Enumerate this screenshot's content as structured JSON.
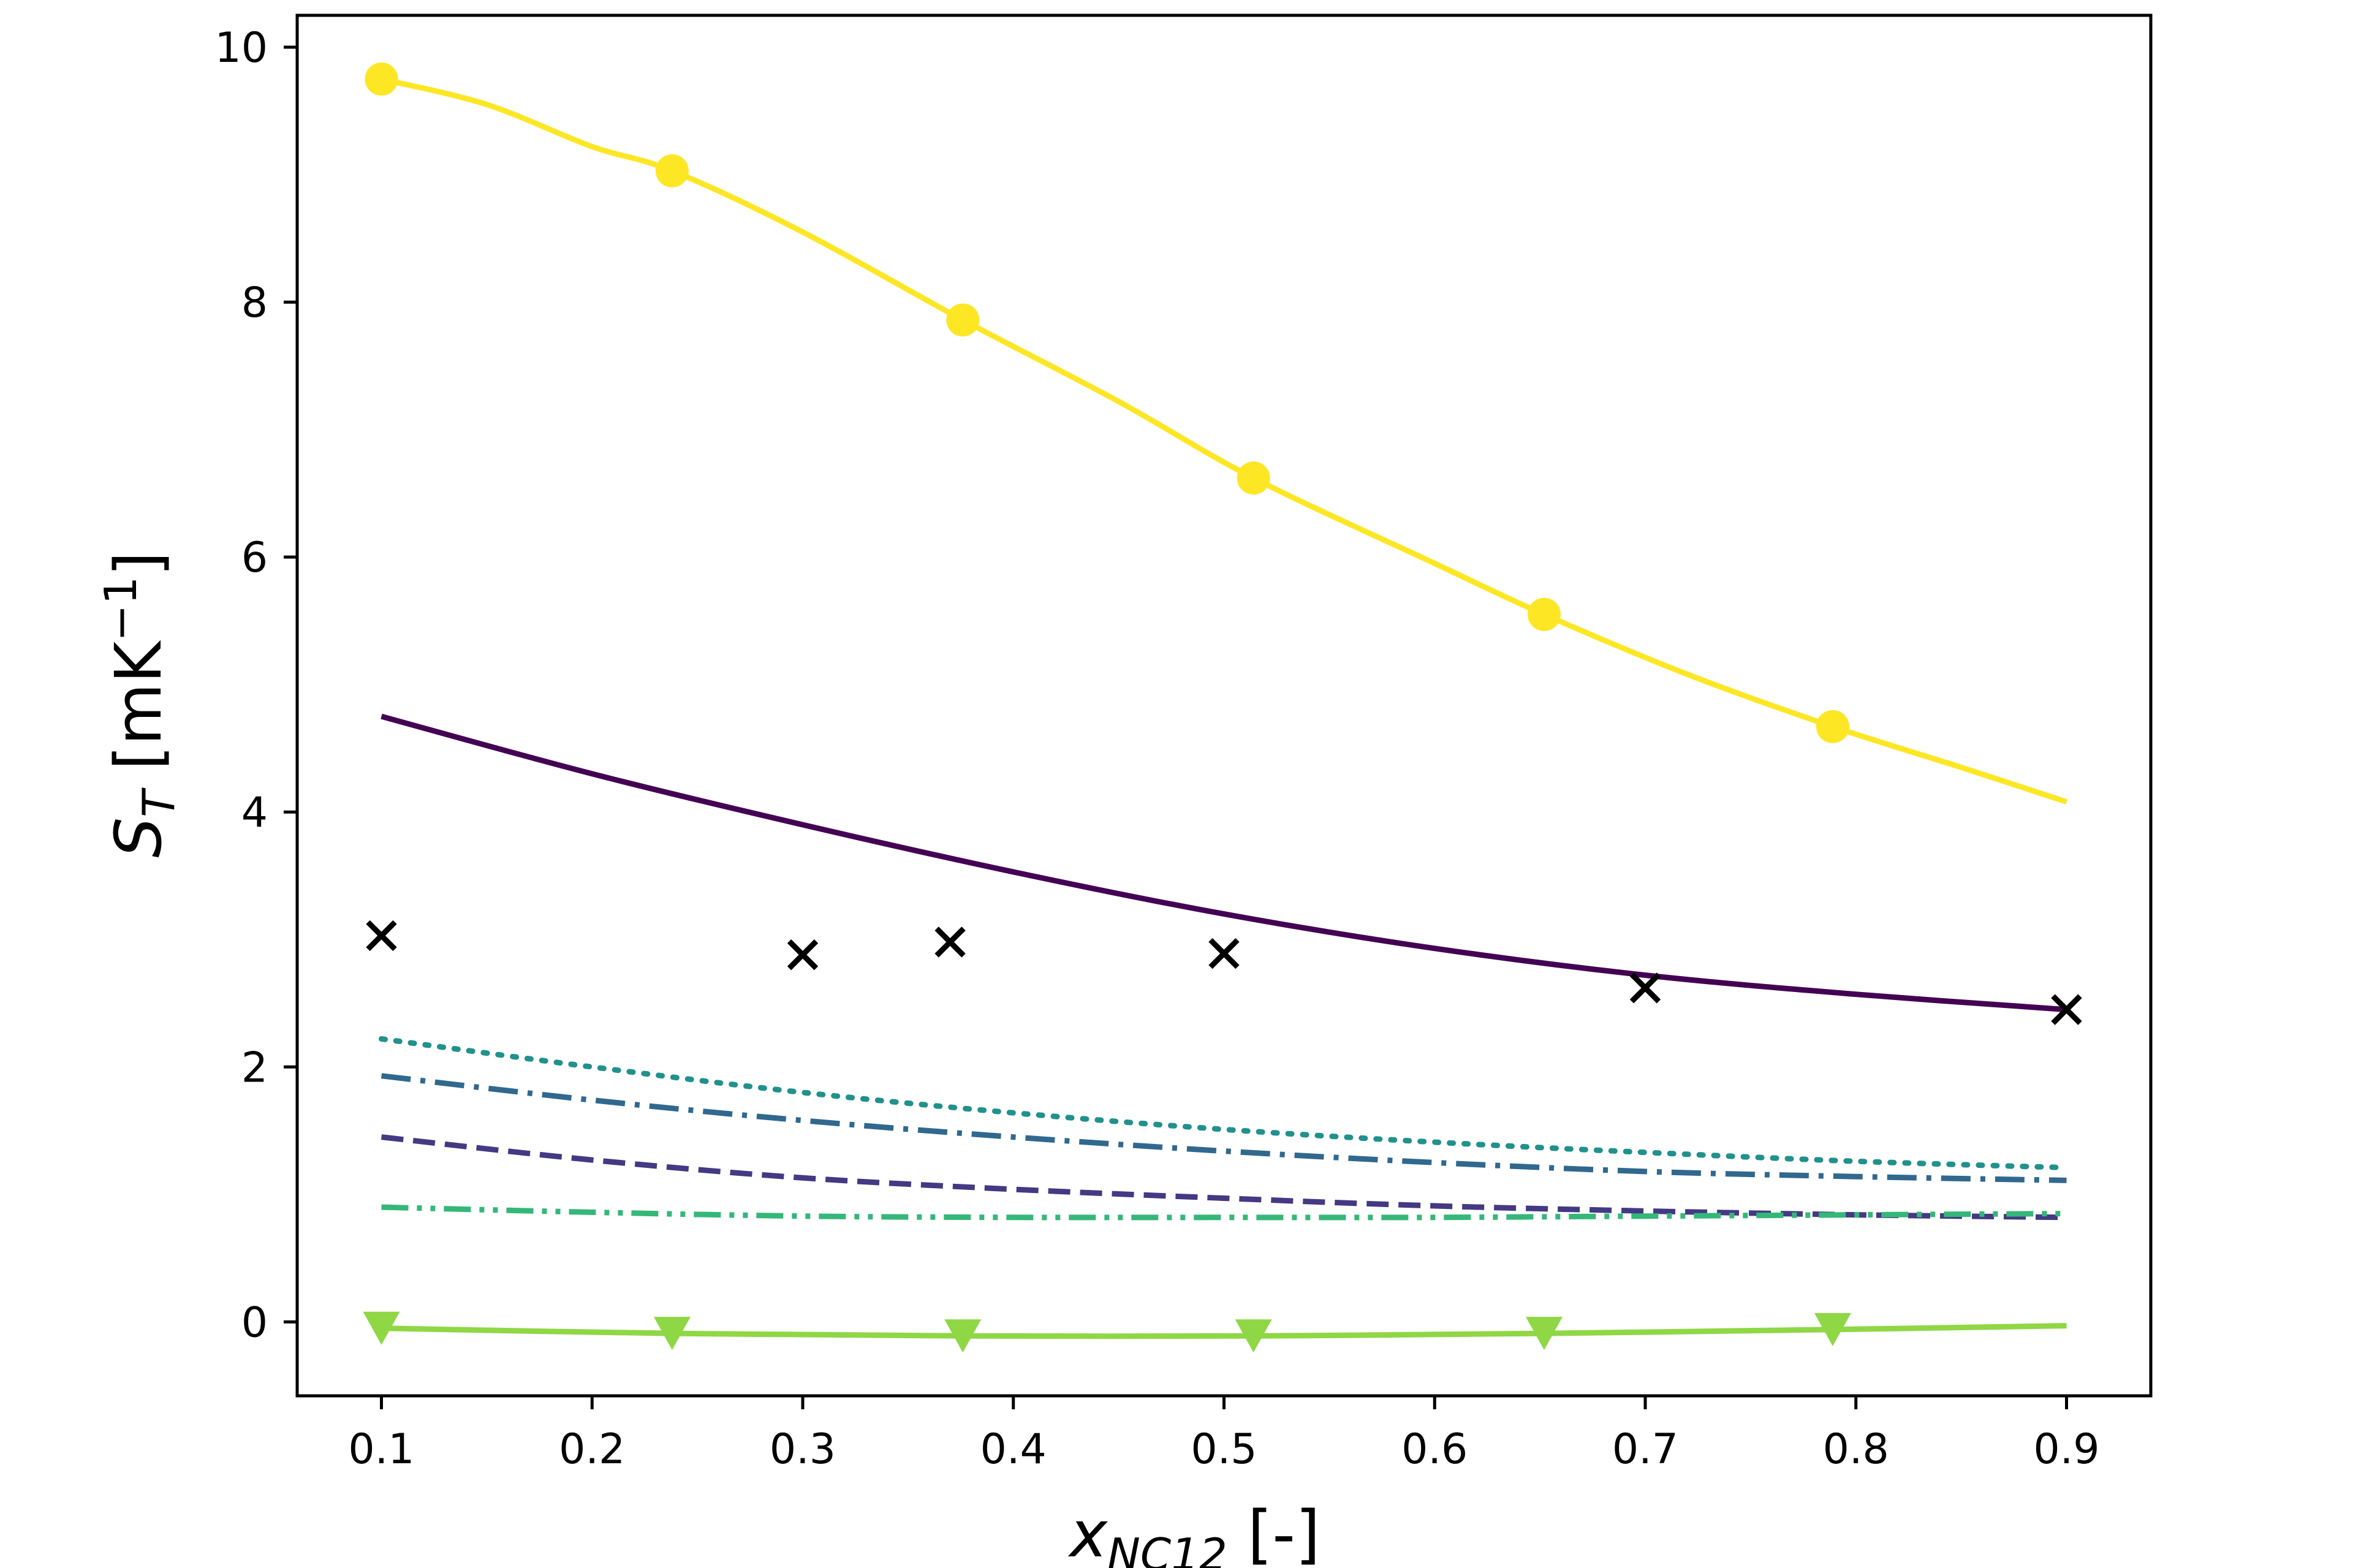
{
  "chart_data": {
    "type": "line",
    "xlabel": {
      "main": "x",
      "sub": "NC12",
      "rest": " [-]"
    },
    "ylabel": {
      "main": "S",
      "sub": "T",
      "unit_open": " [mK",
      "unit_sup": "−1",
      "unit_close": "]"
    },
    "xlim": [
      0.06,
      0.94
    ],
    "ylim": [
      -0.58,
      10.25
    ],
    "xticks": [
      0.1,
      0.2,
      0.3,
      0.4,
      0.5,
      0.6,
      0.7,
      0.8,
      0.9
    ],
    "xtick_labels": [
      "0.1",
      "0.2",
      "0.3",
      "0.4",
      "0.5",
      "0.6",
      "0.7",
      "0.8",
      "0.9"
    ],
    "yticks": [
      0,
      2,
      4,
      6,
      8,
      10
    ],
    "ytick_labels": [
      "0",
      "2",
      "4",
      "6",
      "8",
      "10"
    ],
    "grid": false,
    "series": [
      {
        "color": "#fde725",
        "style": "solid",
        "x": [
          0.1,
          0.15,
          0.2,
          0.238,
          0.3,
          0.376,
          0.45,
          0.514,
          0.6,
          0.652,
          0.72,
          0.789,
          0.85,
          0.9
        ],
        "y": [
          9.75,
          9.55,
          9.22,
          9.03,
          8.55,
          7.86,
          7.22,
          6.62,
          5.95,
          5.55,
          5.08,
          4.67,
          4.35,
          4.08
        ]
      },
      {
        "color": "#440154",
        "style": "solid",
        "x": [
          0.1,
          0.2,
          0.3,
          0.4,
          0.5,
          0.6,
          0.7,
          0.8,
          0.9
        ],
        "y": [
          4.75,
          4.3,
          3.9,
          3.53,
          3.2,
          2.93,
          2.72,
          2.57,
          2.45
        ]
      },
      {
        "color": "#21918c",
        "style": "dotted",
        "x": [
          0.1,
          0.2,
          0.3,
          0.4,
          0.5,
          0.6,
          0.7,
          0.8,
          0.9
        ],
        "y": [
          2.22,
          2.0,
          1.8,
          1.64,
          1.51,
          1.41,
          1.33,
          1.26,
          1.21
        ]
      },
      {
        "color": "#31688e",
        "style": "dashdot",
        "x": [
          0.1,
          0.2,
          0.3,
          0.4,
          0.5,
          0.6,
          0.7,
          0.8,
          0.9
        ],
        "y": [
          1.93,
          1.74,
          1.58,
          1.45,
          1.34,
          1.25,
          1.18,
          1.14,
          1.11
        ]
      },
      {
        "color": "#443983",
        "style": "dashed",
        "x": [
          0.1,
          0.2,
          0.3,
          0.4,
          0.5,
          0.6,
          0.7,
          0.8,
          0.9
        ],
        "y": [
          1.45,
          1.27,
          1.13,
          1.04,
          0.97,
          0.91,
          0.87,
          0.84,
          0.82
        ]
      },
      {
        "color": "#35b779",
        "style": "dashdotdot",
        "x": [
          0.1,
          0.2,
          0.3,
          0.4,
          0.5,
          0.6,
          0.7,
          0.8,
          0.9
        ],
        "y": [
          0.9,
          0.86,
          0.83,
          0.82,
          0.82,
          0.82,
          0.83,
          0.84,
          0.85
        ]
      },
      {
        "color": "#8fd744",
        "style": "solid",
        "x": [
          0.1,
          0.238,
          0.376,
          0.514,
          0.652,
          0.789,
          0.9
        ],
        "y": [
          -0.05,
          -0.09,
          -0.11,
          -0.11,
          -0.09,
          -0.06,
          -0.03
        ]
      }
    ],
    "markers": [
      {
        "marker": "circle",
        "color": "#fde725",
        "x": [
          0.1,
          0.238,
          0.376,
          0.514,
          0.652,
          0.789
        ],
        "y": [
          9.75,
          9.03,
          7.86,
          6.62,
          5.55,
          4.67
        ]
      },
      {
        "marker": "triangle-down",
        "color": "#8fd744",
        "x": [
          0.1,
          0.238,
          0.376,
          0.514,
          0.652,
          0.789
        ],
        "y": [
          -0.05,
          -0.09,
          -0.11,
          -0.11,
          -0.09,
          -0.06
        ]
      },
      {
        "marker": "x",
        "color": "#000000",
        "x": [
          0.1,
          0.3,
          0.37,
          0.5,
          0.7,
          0.9
        ],
        "y": [
          3.03,
          2.88,
          2.98,
          2.89,
          2.62,
          2.45
        ]
      }
    ]
  }
}
